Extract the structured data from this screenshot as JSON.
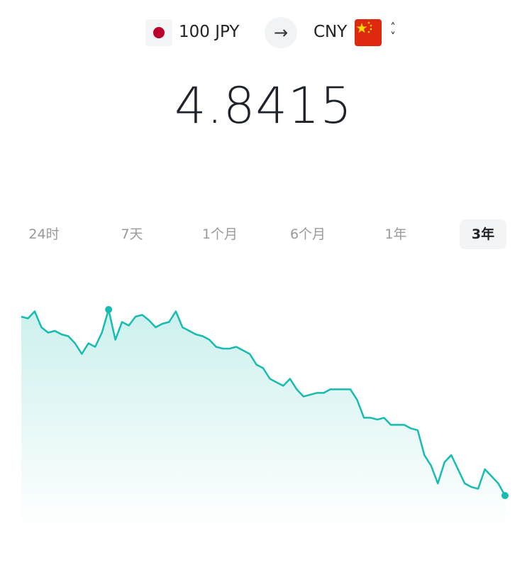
{
  "converter": {
    "from_label": "100 JPY",
    "to_label": "CNY",
    "from_flag_icon": "japan-flag-icon",
    "to_flag_icon": "china-flag-icon",
    "swap_icon": "arrow-right-icon",
    "selector_icon": "chevron-up-down-icon"
  },
  "rate": "4.8415",
  "tabs": [
    {
      "label": "24时",
      "active": false
    },
    {
      "label": "7天",
      "active": false
    },
    {
      "label": "1个月",
      "active": false
    },
    {
      "label": "6个月",
      "active": false
    },
    {
      "label": "1年",
      "active": false
    },
    {
      "label": "3年",
      "active": true
    }
  ],
  "colors": {
    "line": "#17bcb0",
    "accent_jp": "#bc002d",
    "accent_cn": "#de2910"
  },
  "chart_data": {
    "type": "area",
    "period": "3年",
    "grid": false,
    "axes_visible": false,
    "series": [
      {
        "values": [
          5.85,
          5.84,
          5.88,
          5.79,
          5.76,
          5.77,
          5.75,
          5.74,
          5.7,
          5.64,
          5.7,
          5.68,
          5.76,
          5.89,
          5.72,
          5.82,
          5.8,
          5.85,
          5.86,
          5.83,
          5.79,
          5.81,
          5.82,
          5.88,
          5.79,
          5.77,
          5.75,
          5.74,
          5.72,
          5.68,
          5.67,
          5.67,
          5.68,
          5.66,
          5.64,
          5.58,
          5.56,
          5.5,
          5.48,
          5.46,
          5.5,
          5.44,
          5.4,
          5.41,
          5.42,
          5.42,
          5.44,
          5.44,
          5.44,
          5.44,
          5.38,
          5.28,
          5.28,
          5.27,
          5.28,
          5.24,
          5.24,
          5.24,
          5.22,
          5.21,
          5.07,
          5.01,
          4.91,
          5.03,
          5.07,
          4.99,
          4.91,
          4.89,
          4.88,
          4.99,
          4.95,
          4.91,
          4.8415
        ]
      }
    ],
    "markers": [
      "max",
      "last"
    ]
  }
}
